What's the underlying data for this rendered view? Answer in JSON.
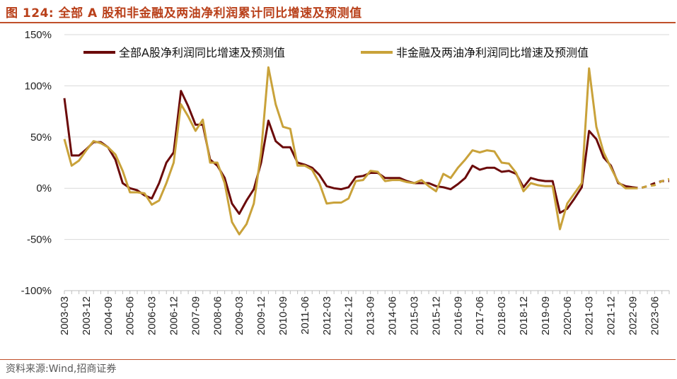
{
  "figure": {
    "title": "图 124:  全部 A 股和非金融及两油净利润累计同比增速及预测值",
    "source": "资料来源:Wind,招商证券",
    "accent_color": "#c0502a"
  },
  "chart_data": {
    "type": "line",
    "title": "全部A股和非金融及两油净利润累计同比增速及预测值",
    "xlabel": "",
    "ylabel": "",
    "ylim": [
      -100,
      150
    ],
    "yticks": [
      -100,
      -50,
      0,
      50,
      100,
      150
    ],
    "ytick_labels": [
      "-100%",
      "-50%",
      "0%",
      "50%",
      "100%",
      "150%"
    ],
    "xtick_labels": [
      "2003-03",
      "2003-12",
      "2004-09",
      "2005-06",
      "2006-03",
      "2006-12",
      "2007-09",
      "2008-06",
      "2009-03",
      "2009-12",
      "2010-09",
      "2011-06",
      "2012-03",
      "2012-12",
      "2013-09",
      "2014-06",
      "2015-03",
      "2015-12",
      "2016-09",
      "2017-06",
      "2018-03",
      "2018-12",
      "2019-09",
      "2020-06",
      "2021-03",
      "2021-12",
      "2022-09",
      "2023-06"
    ],
    "x": [
      "2003-03",
      "2003-06",
      "2003-09",
      "2003-12",
      "2004-03",
      "2004-06",
      "2004-09",
      "2004-12",
      "2005-03",
      "2005-06",
      "2005-09",
      "2005-12",
      "2006-03",
      "2006-06",
      "2006-09",
      "2006-12",
      "2007-03",
      "2007-06",
      "2007-09",
      "2007-12",
      "2008-03",
      "2008-06",
      "2008-09",
      "2008-12",
      "2009-03",
      "2009-06",
      "2009-09",
      "2009-12",
      "2010-03",
      "2010-06",
      "2010-09",
      "2010-12",
      "2011-03",
      "2011-06",
      "2011-09",
      "2011-12",
      "2012-03",
      "2012-06",
      "2012-09",
      "2012-12",
      "2013-03",
      "2013-06",
      "2013-09",
      "2013-12",
      "2014-03",
      "2014-06",
      "2014-09",
      "2014-12",
      "2015-03",
      "2015-06",
      "2015-09",
      "2015-12",
      "2016-03",
      "2016-06",
      "2016-09",
      "2016-12",
      "2017-03",
      "2017-06",
      "2017-09",
      "2017-12",
      "2018-03",
      "2018-06",
      "2018-09",
      "2018-12",
      "2019-03",
      "2019-06",
      "2019-09",
      "2019-12",
      "2020-03",
      "2020-06",
      "2020-09",
      "2020-12",
      "2021-03",
      "2021-06",
      "2021-09",
      "2021-12",
      "2022-03",
      "2022-06",
      "2022-09",
      "2022-12",
      "2023-03",
      "2023-06",
      "2023-09",
      "2023-12"
    ],
    "legend_position": "top",
    "series": [
      {
        "name": "全部A股净利润同比增速及预测值",
        "color": "#6b0a0a",
        "forecast_from_index": 78,
        "values": [
          88,
          32,
          32,
          38,
          45,
          45,
          40,
          28,
          5,
          0,
          -2,
          -7,
          -10,
          5,
          25,
          35,
          95,
          80,
          62,
          62,
          28,
          22,
          10,
          -15,
          -25,
          -12,
          -1,
          25,
          66,
          46,
          40,
          40,
          25,
          23,
          20,
          13,
          2,
          0,
          -1,
          1,
          11,
          12,
          15,
          15,
          10,
          10,
          10,
          7,
          5,
          5,
          5,
          2,
          1,
          -1,
          4,
          10,
          22,
          18,
          20,
          20,
          16,
          17,
          14,
          1,
          10,
          8,
          7,
          7,
          -24,
          -20,
          -10,
          1,
          56,
          48,
          30,
          22,
          5,
          2,
          1,
          0,
          2,
          5,
          7,
          7
        ]
      },
      {
        "name": "非金融及两油净利润同比增速及预测值",
        "color": "#c9a23a",
        "forecast_from_index": 78,
        "values": [
          48,
          22,
          27,
          37,
          46,
          44,
          40,
          33,
          17,
          -4,
          -4,
          -5,
          -16,
          -12,
          5,
          25,
          82,
          70,
          56,
          67,
          25,
          25,
          5,
          -33,
          -45,
          -35,
          -15,
          35,
          118,
          82,
          60,
          58,
          22,
          22,
          18,
          5,
          -15,
          -14,
          -14,
          -10,
          7,
          8,
          17,
          16,
          7,
          8,
          8,
          6,
          5,
          8,
          2,
          -3,
          14,
          10,
          20,
          28,
          37,
          35,
          37,
          36,
          25,
          24,
          15,
          -3,
          5,
          3,
          2,
          2,
          -40,
          -15,
          -5,
          5,
          117,
          60,
          35,
          20,
          6,
          0,
          0,
          0,
          2,
          3,
          7,
          9
        ]
      }
    ]
  }
}
